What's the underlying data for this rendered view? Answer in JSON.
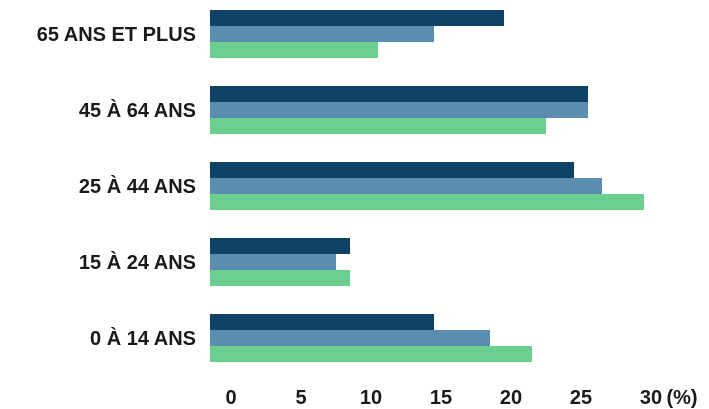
{
  "chart_data": {
    "type": "bar",
    "orientation": "horizontal",
    "categories": [
      "65 ANS ET PLUS",
      "45 À 64 ANS",
      "25 À 44 ANS",
      "15 À 24 ANS",
      "0 À 14 ANS"
    ],
    "series": [
      {
        "values": [
          21.0,
          27.0,
          26.0,
          10.0,
          16.0
        ],
        "color": "#0e4266"
      },
      {
        "values": [
          16.0,
          27.0,
          28.0,
          9.0,
          20.0
        ],
        "color": "#5b8db1"
      },
      {
        "values": [
          12.0,
          24.0,
          31.0,
          10.0,
          23.0
        ],
        "color": "#6ccf90"
      }
    ],
    "xlim": [
      0,
      31
    ],
    "xticks": [
      "0",
      "5",
      "10",
      "15",
      "20",
      "25",
      "30"
    ],
    "xtick_values": [
      0,
      5,
      10,
      15,
      20,
      25,
      30
    ],
    "unit_label": "(%)",
    "grid": false,
    "legend": "none"
  }
}
